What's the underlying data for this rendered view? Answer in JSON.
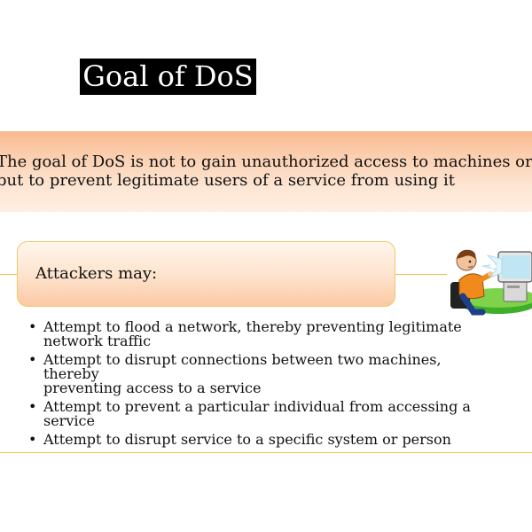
{
  "slide": {
    "title": "Goal of DoS",
    "banner_lines": [
      "The goal of DoS is not to gain unauthorized access to machines or data",
      "but to prevent legitimate users of a service from using it"
    ],
    "subheading": "Attackers may:",
    "bullets": [
      {
        "lines": [
          "Attempt to flood a network, thereby preventing legitimate",
          "network traffic"
        ]
      },
      {
        "lines": [
          "Attempt to disrupt connections between two machines, thereby",
          "preventing access to a service"
        ]
      },
      {
        "lines": [
          "Attempt to prevent a particular individual from accessing a",
          "service"
        ]
      },
      {
        "lines": [
          "Attempt to disrupt service to a specific system or person"
        ]
      }
    ],
    "bullet_glyph": "•",
    "colors": {
      "title_bg": "#000000",
      "title_text": "#ffffff",
      "banner": "#f9b98e",
      "accent_line": "#f2c14e",
      "subheading_border": "#f3c768"
    },
    "clipart_icon": "person-at-computer-icon"
  }
}
